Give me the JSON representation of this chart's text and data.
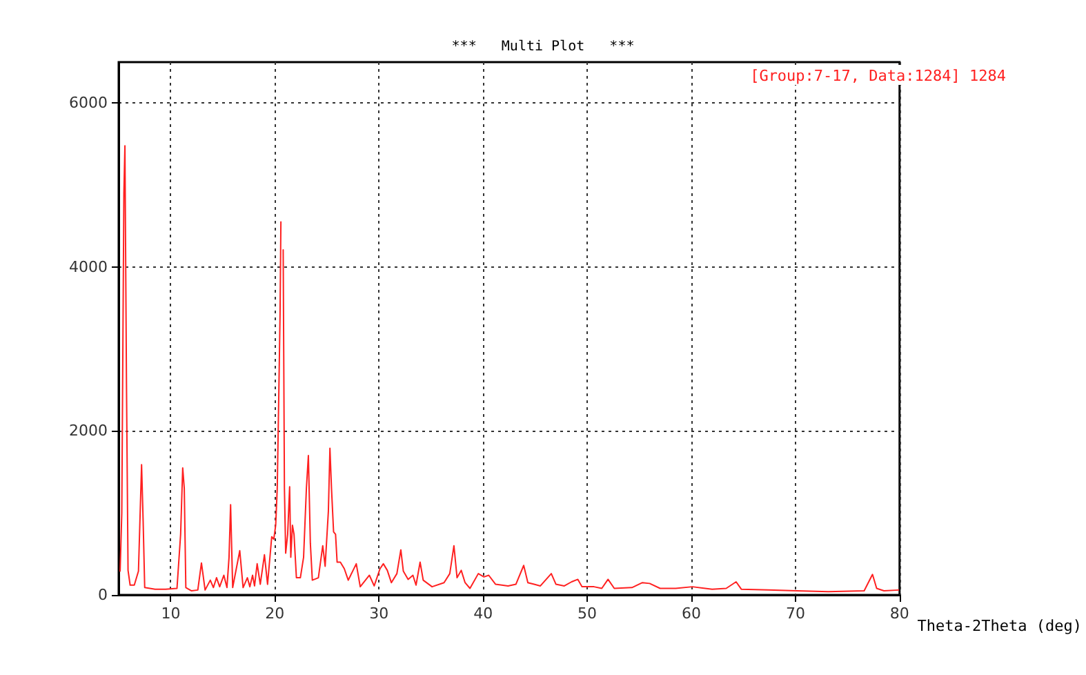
{
  "chart_data": {
    "type": "line",
    "title": "***   Multi Plot   ***",
    "xlabel": "Theta-2Theta (deg)",
    "xlim": [
      5,
      80
    ],
    "xticks": [
      10,
      20,
      30,
      40,
      50,
      60,
      70,
      80
    ],
    "ylim": [
      0,
      6500
    ],
    "yticks": [
      0,
      2000,
      4000,
      6000
    ],
    "grid": true,
    "legend": "top right",
    "marker": "none",
    "line_style": "solid",
    "series": [
      {
        "name": "[Group:7-17, Data:1284] 1284",
        "color": "#ff2020",
        "x": [
          5.14,
          5.3,
          5.5,
          5.6,
          5.75,
          5.9,
          6.1,
          6.5,
          6.9,
          7.2,
          7.35,
          7.5,
          8.5,
          9.5,
          10.6,
          10.95,
          11.15,
          11.3,
          11.45,
          12.0,
          12.6,
          12.95,
          13.3,
          13.8,
          14.1,
          14.4,
          14.7,
          15.1,
          15.4,
          15.6,
          15.75,
          15.95,
          16.63,
          16.95,
          17.36,
          17.6,
          17.86,
          18.05,
          18.3,
          18.6,
          19.0,
          19.3,
          19.7,
          19.9,
          20.08,
          20.23,
          20.39,
          20.5,
          20.58,
          20.65,
          20.73,
          20.8,
          20.92,
          21.04,
          21.23,
          21.42,
          21.53,
          21.69,
          21.84,
          22.07,
          22.45,
          22.76,
          23.03,
          23.22,
          23.41,
          23.6,
          24.18,
          24.6,
          24.83,
          25.14,
          25.29,
          25.44,
          25.64,
          25.83,
          25.98,
          26.29,
          26.67,
          27.05,
          27.82,
          28.2,
          29.08,
          29.54,
          30.1,
          30.42,
          30.8,
          31.19,
          31.72,
          32.1,
          32.34,
          32.8,
          33.26,
          33.56,
          33.95,
          34.25,
          35.1,
          36.25,
          36.8,
          37.2,
          37.5,
          37.9,
          38.27,
          38.74,
          39.54,
          40.08,
          40.54,
          41.2,
          42.4,
          43.15,
          43.9,
          44.3,
          44.9,
          45.5,
          46.55,
          47.0,
          47.8,
          48.5,
          49.1,
          49.5,
          50.65,
          51.4,
          52.0,
          52.6,
          54.3,
          55.3,
          56.0,
          57.0,
          58.5,
          60.1,
          62.0,
          63.35,
          64.3,
          64.8,
          67.4,
          70.1,
          73.15,
          76.6,
          77.4,
          77.8,
          78.5,
          79.9
        ],
        "values": [
          290,
          1000,
          4900,
          5480,
          2560,
          300,
          120,
          120,
          290,
          1590,
          900,
          90,
          70,
          70,
          80,
          740,
          1550,
          1300,
          90,
          50,
          60,
          390,
          60,
          180,
          90,
          210,
          100,
          240,
          90,
          460,
          1100,
          90,
          540,
          90,
          210,
          100,
          240,
          110,
          380,
          130,
          490,
          130,
          710,
          680,
          850,
          1300,
          2530,
          3430,
          4550,
          null,
          null,
          4210,
          1300,
          510,
          740,
          1320,
          460,
          850,
          740,
          210,
          210,
          460,
          1300,
          1700,
          630,
          180,
          210,
          600,
          350,
          1020,
          1790,
          1300,
          770,
          740,
          400,
          400,
          320,
          180,
          380,
          100,
          240,
          110,
          320,
          380,
          300,
          150,
          260,
          550,
          290,
          190,
          240,
          120,
          400,
          180,
          100,
          150,
          260,
          600,
          210,
          300,
          150,
          80,
          260,
          220,
          240,
          130,
          110,
          130,
          360,
          150,
          130,
          110,
          260,
          130,
          110,
          160,
          190,
          100,
          100,
          80,
          190,
          80,
          90,
          150,
          140,
          80,
          80,
          100,
          70,
          80,
          160,
          70,
          60,
          50,
          40,
          50,
          250,
          80,
          50,
          60
        ]
      }
    ]
  }
}
